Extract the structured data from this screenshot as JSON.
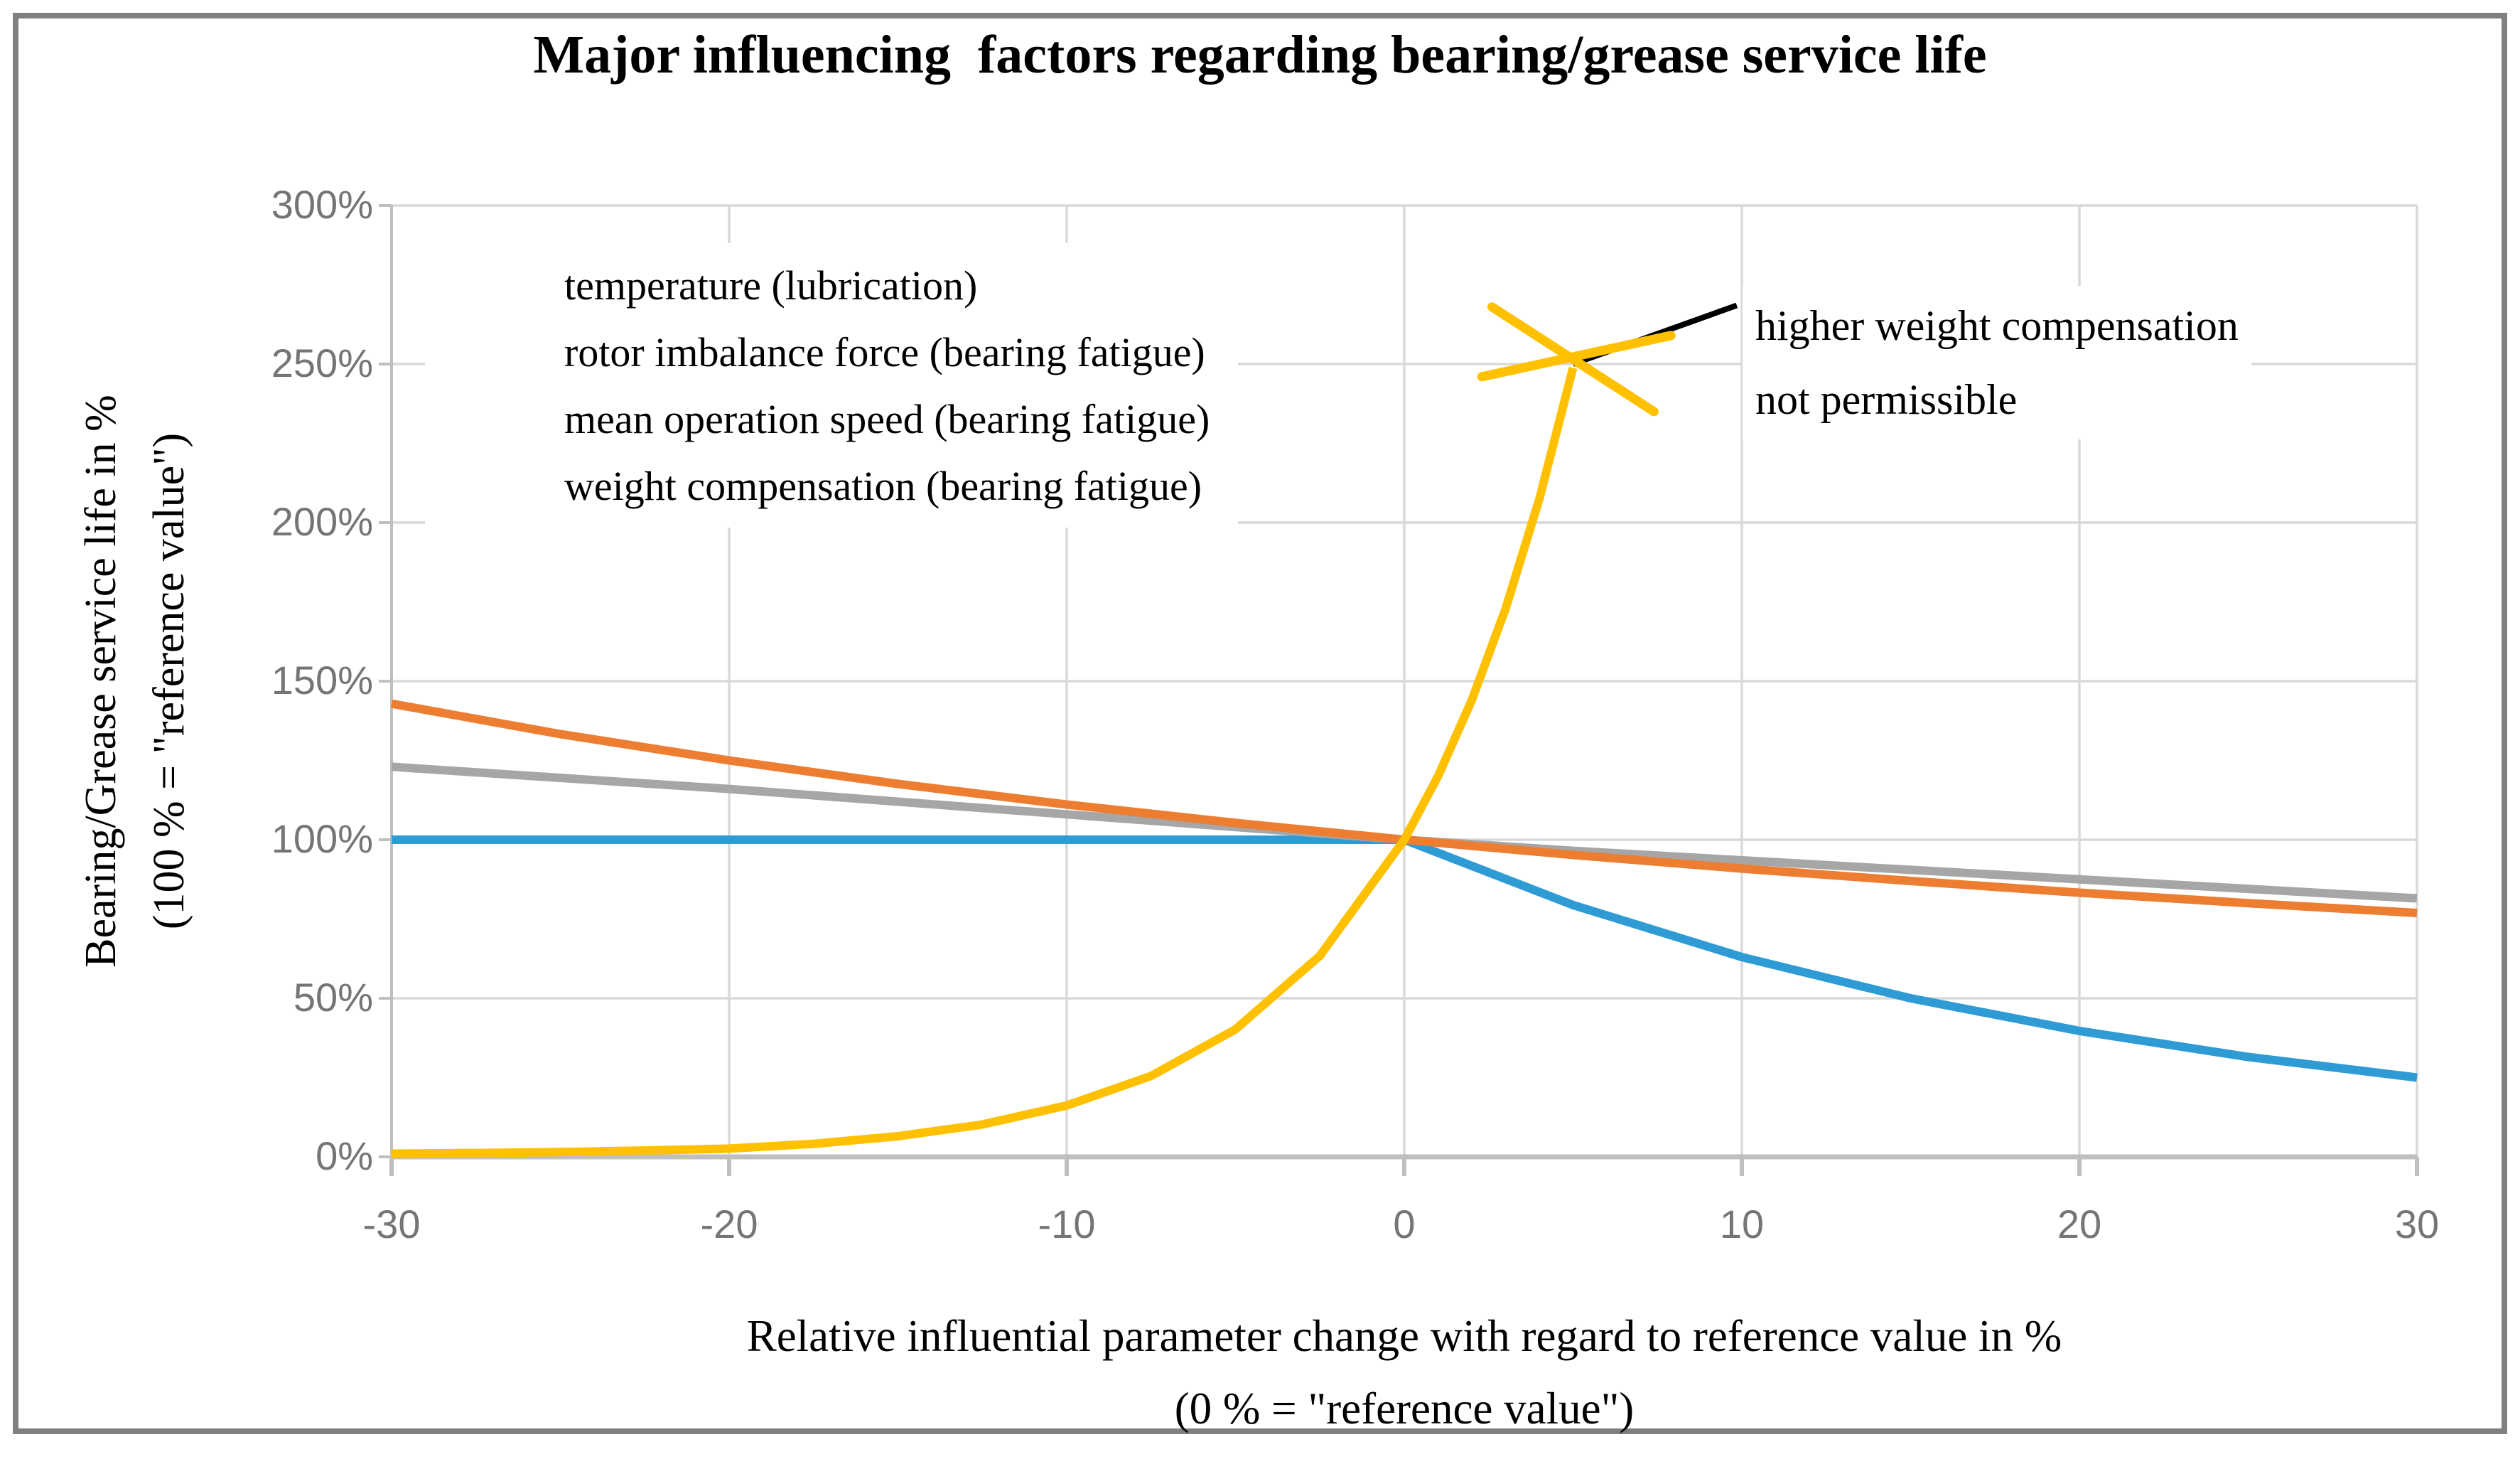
{
  "figure": {
    "title": "Major influencing  factors regarding bearing/grease service life",
    "border_color": "#808080",
    "background": "#ffffff"
  },
  "legend": {
    "position": "top-left",
    "items": [
      {
        "label": "temperature (lubrication)",
        "color": "#2E9BD5"
      },
      {
        "label": "rotor imbalance force (bearing fatigue)",
        "color": "#A6A6A6"
      },
      {
        "label": "mean operation speed (bearing fatigue)",
        "color": "#ED7D31"
      },
      {
        "label": "weight compensation (bearing fatigue)",
        "color": "#FFC000"
      }
    ]
  },
  "annotation": {
    "line1": "higher weight compensation",
    "line2": "not permissible"
  },
  "chart_data": {
    "type": "line",
    "title": "Major influencing  factors regarding bearing/grease service life",
    "xlabel_line1": "Relative influential parameter change with regard to reference value in %",
    "xlabel_line2": "(0 % = \"reference value\")",
    "ylabel_line1": "Bearing/Grease service life in %",
    "ylabel_line2": "(100 % = \"reference value\")",
    "xlim": [
      -30,
      30
    ],
    "ylim": [
      0,
      300
    ],
    "grid": true,
    "x_tick_values": [
      -30,
      -20,
      -10,
      0,
      10,
      20,
      30
    ],
    "x_tick_labels": [
      "-30",
      "-20",
      "-10",
      "0",
      "10",
      "20",
      "30"
    ],
    "y_tick_values": [
      0,
      50,
      100,
      150,
      200,
      250,
      300
    ],
    "y_tick_labels": [
      "0%",
      "50%",
      "100%",
      "150%",
      "200%",
      "250%",
      "300%"
    ],
    "colors": {
      "gridline": "#D9D9D9",
      "axis_line": "#BFBFBF",
      "tick_label": "#757575",
      "annotation_pointer": "#000000"
    },
    "series": [
      {
        "name": "temperature (lubrication)",
        "color": "#2E9BD5",
        "x": [
          -30,
          -25,
          -20,
          -15,
          -10,
          -5,
          0,
          5,
          10,
          15,
          20,
          25,
          30
        ],
        "y": [
          100,
          100,
          100,
          100,
          100,
          100,
          100,
          79.4,
          63,
          50,
          39.7,
          31.5,
          25
        ]
      },
      {
        "name": "rotor imbalance force (bearing fatigue)",
        "color": "#A6A6A6",
        "x": [
          -30,
          -25,
          -20,
          -15,
          -10,
          -5,
          0,
          5,
          10,
          15,
          20,
          25,
          30
        ],
        "y": [
          123,
          119.5,
          116,
          112,
          108,
          104,
          100,
          96.5,
          93.5,
          90.5,
          87.5,
          84.5,
          81.5
        ]
      },
      {
        "name": "mean operation speed (bearing fatigue)",
        "color": "#ED7D31",
        "x": [
          -30,
          -25,
          -20,
          -15,
          -10,
          -5,
          0,
          5,
          10,
          15,
          20,
          25,
          30
        ],
        "y": [
          142.9,
          133.3,
          125,
          117.6,
          111.1,
          105.3,
          100,
          95.2,
          90.9,
          87,
          83.3,
          80,
          76.9
        ]
      },
      {
        "name": "weight compensation (bearing fatigue)",
        "color": "#FFC000",
        "x": [
          -30,
          -27.5,
          -25,
          -22.5,
          -20,
          -17.5,
          -15,
          -12.5,
          -10,
          -7.5,
          -5,
          -2.5,
          0,
          1,
          2,
          3,
          4,
          5
        ],
        "y": [
          1,
          1.2,
          1.5,
          2,
          2.6,
          4.1,
          6.5,
          10.2,
          16.2,
          25.5,
          40.2,
          63.4,
          100,
          120,
          144,
          172.8,
          207.4,
          248.8
        ]
      }
    ],
    "not_permissible_marker": {
      "color": "#FFC000",
      "stroke_width": 13,
      "center": [
        5,
        250
      ],
      "segments": [
        [
          [
            2.6,
            268
          ],
          [
            7.4,
            235
          ]
        ],
        [
          [
            2.3,
            246
          ],
          [
            7.9,
            259
          ]
        ]
      ]
    },
    "annotation_pointer_line": [
      [
        5.0,
        250
      ],
      [
        9.85,
        268.5
      ]
    ]
  }
}
